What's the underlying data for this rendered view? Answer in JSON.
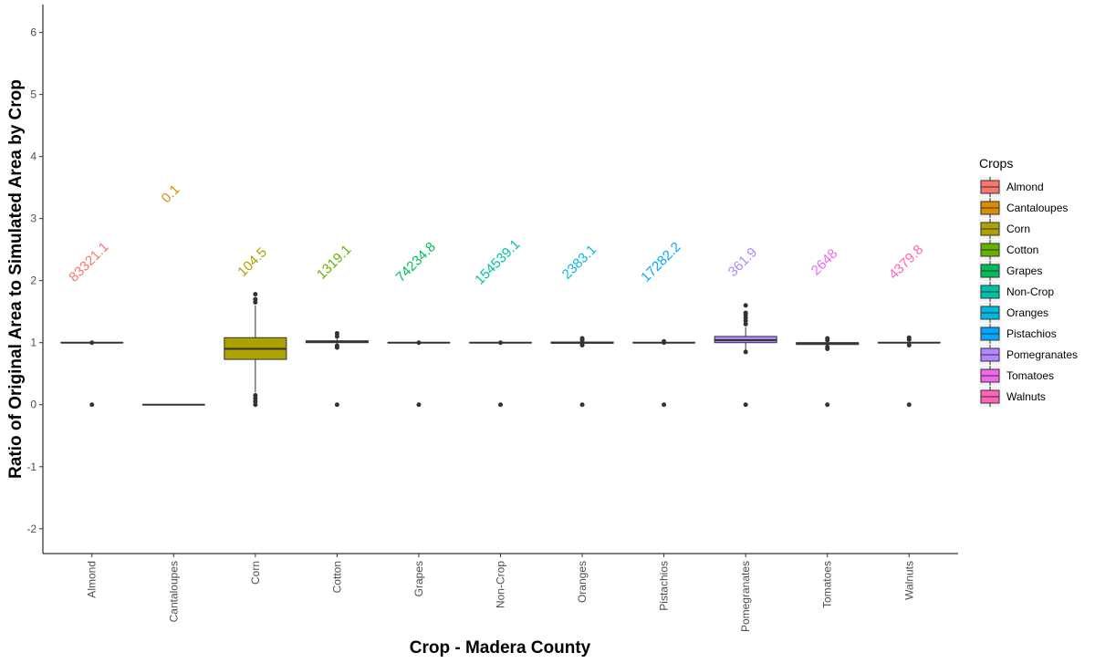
{
  "chart_data": {
    "type": "box",
    "x_label": "Crop - Madera County",
    "y_label": "Ratio of Original Area to Simulated Area by Crop",
    "legend_title": "Crops",
    "legend_position": "right",
    "categories": [
      "Almond",
      "Cantaloupes",
      "Corn",
      "Cotton",
      "Grapes",
      "Non-Crop",
      "Oranges",
      "Pistachios",
      "Pomegranates",
      "Tomatoes",
      "Walnuts"
    ],
    "colors": [
      "#F8766D",
      "#DB8E00",
      "#AEA200",
      "#64B200",
      "#00BD5C",
      "#00C1A7",
      "#00BADE",
      "#00A6FF",
      "#B385FF",
      "#EF67EB",
      "#FF63B6"
    ],
    "boxes": [
      {
        "min": 1,
        "q1": 1,
        "median": 1,
        "q3": 1,
        "max": 1,
        "outliers": [
          0,
          1
        ]
      },
      {
        "min": 0,
        "q1": 0,
        "median": 0,
        "q3": 0,
        "max": 0,
        "outliers": []
      },
      {
        "min": 0.2,
        "q1": 0.73,
        "median": 0.9,
        "q3": 1.08,
        "max": 1.6,
        "outliers": [
          0,
          0.05,
          0.1,
          0.15,
          1.65,
          1.7,
          1.78
        ]
      },
      {
        "min": 0.97,
        "q1": 1.0,
        "median": 1.01,
        "q3": 1.03,
        "max": 1.06,
        "outliers": [
          0,
          0.92,
          0.95,
          1.1,
          1.15
        ]
      },
      {
        "min": 1,
        "q1": 1,
        "median": 1,
        "q3": 1,
        "max": 1,
        "outliers": [
          0,
          1
        ]
      },
      {
        "min": 1,
        "q1": 1,
        "median": 1,
        "q3": 1,
        "max": 1,
        "outliers": [
          0,
          1
        ]
      },
      {
        "min": 0.98,
        "q1": 0.99,
        "median": 1,
        "q3": 1.01,
        "max": 1.02,
        "outliers": [
          0,
          0.96,
          1.04,
          1.07
        ]
      },
      {
        "min": 1,
        "q1": 1,
        "median": 1,
        "q3": 1,
        "max": 1,
        "outliers": [
          0,
          1,
          1.02
        ]
      },
      {
        "min": 0.88,
        "q1": 1.0,
        "median": 1.04,
        "q3": 1.1,
        "max": 1.25,
        "outliers": [
          0,
          0.85,
          1.3,
          1.35,
          1.4,
          1.45,
          1.48,
          1.6
        ]
      },
      {
        "min": 0.95,
        "q1": 0.97,
        "median": 0.99,
        "q3": 1.0,
        "max": 1.02,
        "outliers": [
          0,
          0.9,
          0.93,
          1.04,
          1.07
        ]
      },
      {
        "min": 1,
        "q1": 1,
        "median": 1,
        "q3": 1,
        "max": 1,
        "outliers": [
          0,
          0.96,
          1.05,
          1.08
        ]
      }
    ],
    "annotations": [
      83321.1,
      0.1,
      104.5,
      1319.1,
      74234.8,
      154539.1,
      2383.1,
      17282.2,
      361.9,
      2648,
      4379.8
    ],
    "annotation_y": [
      2.25,
      3.35,
      2.25,
      2.25,
      2.25,
      2.25,
      2.25,
      2.25,
      2.25,
      2.25,
      2.25
    ],
    "ylim": [
      -2.4,
      6.45
    ],
    "yticks": [
      -2,
      -1,
      0,
      1,
      2,
      3,
      4,
      5,
      6
    ]
  }
}
